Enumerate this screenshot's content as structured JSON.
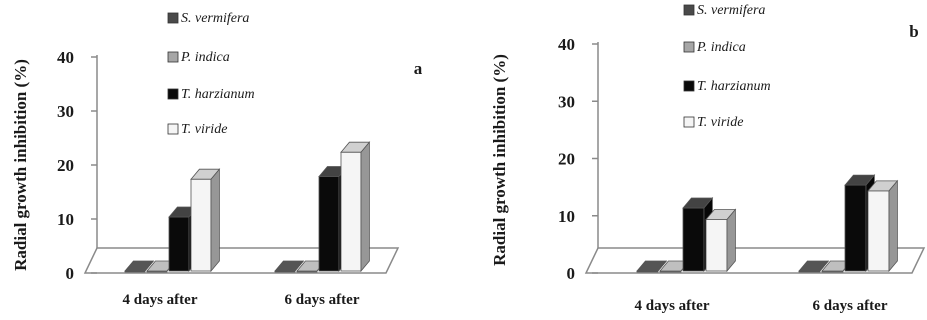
{
  "chart_data": [
    {
      "type": "bar",
      "panel_label": "a",
      "ylabel": "Radial growth inhibition (%)",
      "ylim": [
        0,
        40
      ],
      "yticks": [
        "0",
        "10",
        "20",
        "30",
        "40"
      ],
      "categories": [
        "4 days after",
        "6 days after"
      ],
      "series": [
        {
          "name": "S. vermifera",
          "color": "#4a4a4a",
          "values": [
            0,
            0
          ]
        },
        {
          "name": "P. indica",
          "color": "#a6a6a6",
          "values": [
            0,
            0
          ]
        },
        {
          "name": "T. harzianum",
          "color": "#0a0a0a",
          "values": [
            10,
            17.5
          ]
        },
        {
          "name": "T. viride",
          "color": "#f5f5f5",
          "values": [
            17,
            22
          ]
        }
      ],
      "legend_position": "top"
    },
    {
      "type": "bar",
      "panel_label": "b",
      "ylabel": "Radial growth inhibition (%)",
      "ylim": [
        0,
        40
      ],
      "yticks": [
        "0",
        "10",
        "20",
        "30",
        "40"
      ],
      "categories": [
        "4 days after",
        "6 days after"
      ],
      "series": [
        {
          "name": "S. vermifera",
          "color": "#4a4a4a",
          "values": [
            0,
            0
          ]
        },
        {
          "name": "P. indica",
          "color": "#a6a6a6",
          "values": [
            0,
            0
          ]
        },
        {
          "name": "T. harzianum",
          "color": "#0a0a0a",
          "values": [
            11,
            15
          ]
        },
        {
          "name": "T. viride",
          "color": "#f5f5f5",
          "values": [
            9,
            14
          ]
        }
      ],
      "legend_position": "top"
    }
  ]
}
